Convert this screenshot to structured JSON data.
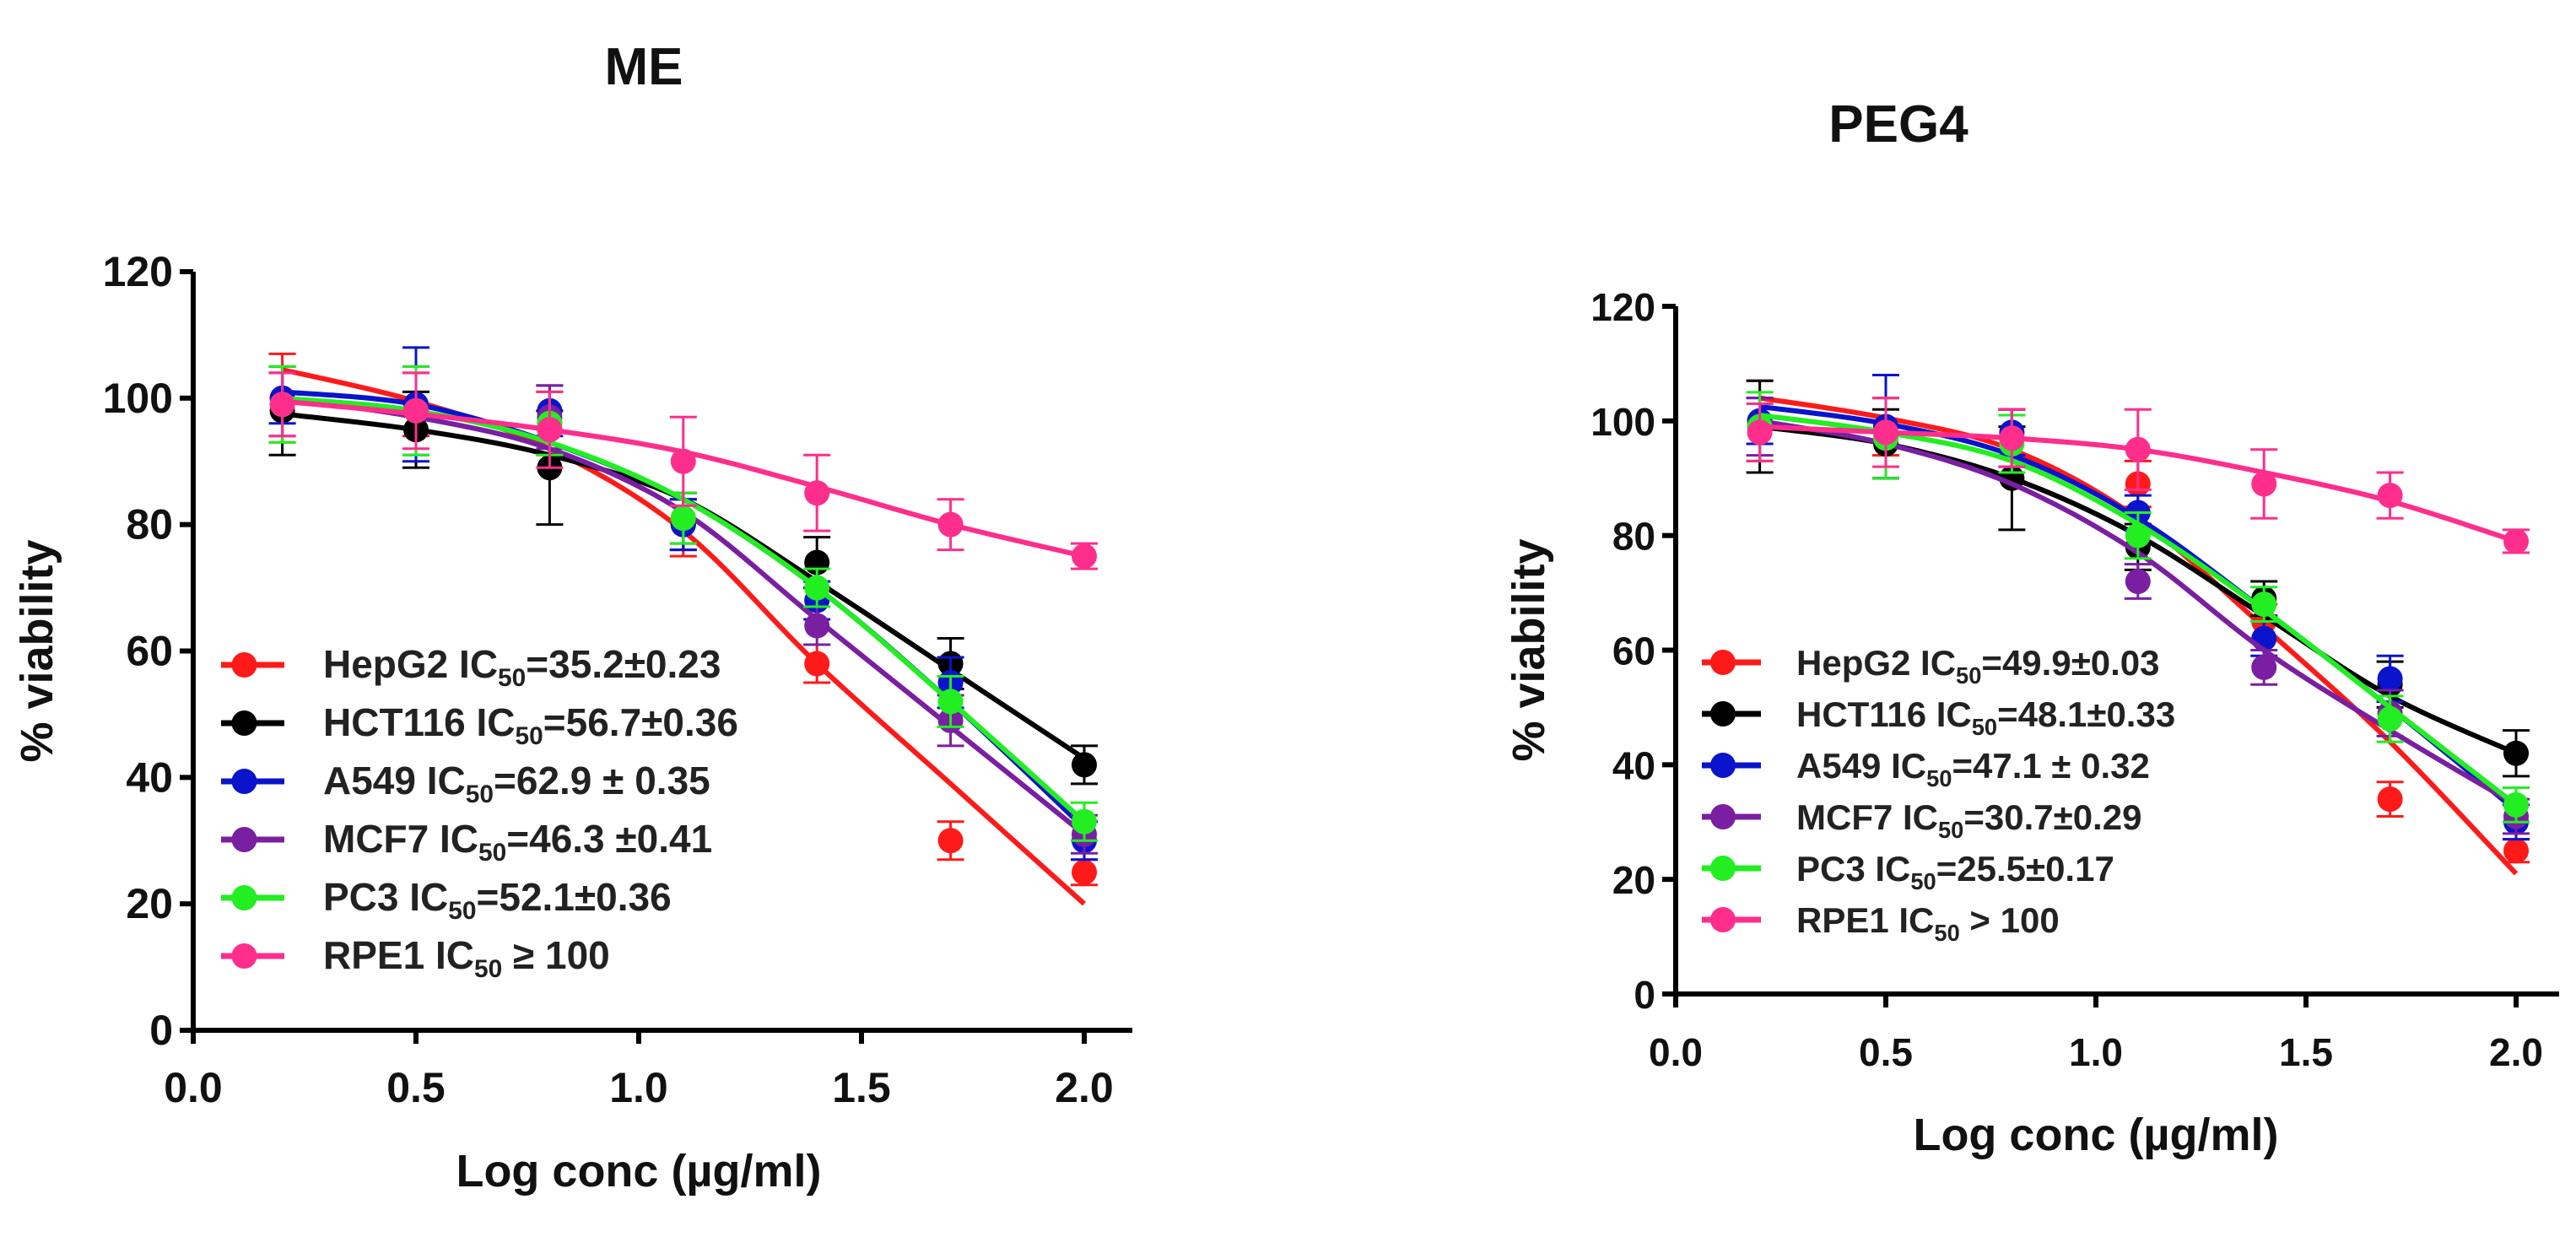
{
  "chart_data": [
    {
      "type": "line",
      "title": "ME",
      "xlabel": "Log conc (µg/ml)",
      "ylabel": "% viability",
      "xlim": [
        0,
        2.1
      ],
      "ylim": [
        0,
        120
      ],
      "xticks": [
        "0.0",
        "0.5",
        "1.0",
        "1.5",
        "2.0"
      ],
      "xtick_values": [
        0,
        0.5,
        1.0,
        1.5,
        2.0
      ],
      "yticks": [
        "0",
        "20",
        "40",
        "60",
        "80",
        "100",
        "120"
      ],
      "ytick_values": [
        0,
        20,
        40,
        60,
        80,
        100,
        120
      ],
      "grid": false,
      "legend_position": "bottom-left",
      "x": [
        0.2,
        0.5,
        0.8,
        1.1,
        1.4,
        1.7,
        2.0
      ],
      "series": [
        {
          "name": "HepG2",
          "label": "HepG2 IC",
          "sub": "50",
          "value": "=35.2±0.23",
          "color": "#ff1a1a",
          "values": [
            100,
            99,
            96,
            80,
            58,
            30,
            25
          ],
          "error": [
            7,
            5,
            5,
            5,
            3,
            3,
            2
          ],
          "fit": [
            104.5,
            99.5,
            92,
            79,
            58,
            39,
            20
          ]
        },
        {
          "name": "HCT116",
          "label": "HCT116 IC",
          "sub": "50",
          "value": "=56.7±0.36",
          "color": "#000000",
          "values": [
            98,
            95,
            89,
            80,
            74,
            58,
            42
          ],
          "error": [
            7,
            6,
            9,
            4,
            4,
            4,
            3
          ],
          "fit": [
            97.5,
            95,
            91,
            84,
            71,
            57,
            43
          ]
        },
        {
          "name": "A549",
          "label": "A549 IC",
          "sub": "50",
          "value": "=62.9 ± 0.35",
          "color": "#0a14cc",
          "values": [
            100,
            99,
            98,
            80,
            68,
            55,
            30
          ],
          "error": [
            4,
            9,
            4,
            4,
            3,
            4,
            3
          ],
          "fit": [
            101,
            99,
            93,
            84,
            70,
            52,
            32
          ]
        },
        {
          "name": "MCF7",
          "label": "MCF7 IC",
          "sub": "50",
          "value": "=46.3 ±0.41",
          "color": "#7a1fa2",
          "values": [
            99,
            98,
            97,
            81,
            64,
            49,
            31
          ],
          "error": [
            5,
            7,
            5,
            4,
            3,
            4,
            3
          ],
          "fit": [
            100,
            97,
            92,
            82,
            65,
            48,
            31
          ]
        },
        {
          "name": "PC3",
          "label": "PC3  IC",
          "sub": "50",
          "value": "=52.1±0.36",
          "color": "#22ee22",
          "values": [
            99,
            98,
            96,
            81,
            70,
            52,
            33
          ],
          "error": [
            6,
            7,
            5,
            4,
            3,
            4,
            3
          ],
          "fit": [
            100,
            98,
            93,
            84,
            70,
            52,
            33
          ]
        },
        {
          "name": "RPE1",
          "label": "RPE1 IC",
          "sub": "50",
          "value": " ≥ 100",
          "color": "#ff2e8c",
          "values": [
            99,
            98,
            95,
            90,
            85,
            80,
            75
          ],
          "error": [
            5,
            6,
            6,
            7,
            6,
            4,
            2
          ],
          "fit": [
            99.5,
            97.5,
            95,
            91.5,
            86,
            80,
            75
          ]
        }
      ]
    },
    {
      "type": "line",
      "title": "PEG4",
      "xlabel": "Log conc (µg/ml)",
      "ylabel": "% viability",
      "xlim": [
        0,
        2.1
      ],
      "ylim": [
        0,
        120
      ],
      "xticks": [
        "0.0",
        "0.5",
        "1.0",
        "1.5",
        "2.0"
      ],
      "xtick_values": [
        0,
        0.5,
        1.0,
        1.5,
        2.0
      ],
      "yticks": [
        "0",
        "20",
        "40",
        "60",
        "80",
        "100",
        "120"
      ],
      "ytick_values": [
        0,
        20,
        40,
        60,
        80,
        100,
        120
      ],
      "grid": false,
      "legend_position": "bottom-left",
      "x": [
        0.2,
        0.5,
        0.8,
        1.1,
        1.4,
        1.7,
        2.0
      ],
      "series": [
        {
          "name": "HepG2",
          "label": "HepG2 IC",
          "sub": "50",
          "value": "=49.9±0.03",
          "color": "#ff1a1a",
          "values": [
            100,
            99,
            97,
            89,
            65,
            34,
            25
          ],
          "error": [
            7,
            5,
            5,
            4,
            3,
            3,
            2
          ],
          "fit": [
            104,
            100.5,
            95,
            83,
            64,
            44,
            21
          ]
        },
        {
          "name": "HCT116",
          "label": "HCT116 IC",
          "sub": "50",
          "value": "=48.1±0.33",
          "color": "#000000",
          "values": [
            99,
            96,
            90,
            78,
            69,
            54,
            42
          ],
          "error": [
            8,
            6,
            9,
            4,
            3,
            4,
            4
          ],
          "fit": [
            99,
            96,
            90,
            80,
            66,
            52,
            42
          ]
        },
        {
          "name": "A549",
          "label": "A549 IC",
          "sub": "50",
          "value": "=47.1 ± 0.32",
          "color": "#0a14cc",
          "values": [
            100,
            99,
            98,
            84,
            62,
            55,
            30
          ],
          "error": [
            4,
            9,
            4,
            3,
            3,
            4,
            3
          ],
          "fit": [
            102.5,
            99.5,
            94,
            83,
            67,
            50,
            32
          ]
        },
        {
          "name": "MCF7",
          "label": "MCF7 IC",
          "sub": "50",
          "value": "=30.7±0.29",
          "color": "#7a1fa2",
          "values": [
            99,
            97,
            97,
            72,
            57,
            49,
            31
          ],
          "error": [
            5,
            7,
            5,
            3,
            3,
            4,
            3
          ],
          "fit": [
            100,
            96,
            89,
            77,
            60,
            46,
            33
          ]
        },
        {
          "name": "PC3",
          "label": "PC3  IC",
          "sub": "50",
          "value": "=25.5±0.17",
          "color": "#22ee22",
          "values": [
            99,
            97,
            96,
            80,
            68,
            48,
            33
          ],
          "error": [
            6,
            7,
            5,
            4,
            3,
            4,
            3
          ],
          "fit": [
            101,
            98,
            93,
            82,
            67,
            50,
            33
          ]
        },
        {
          "name": "RPE1",
          "label": "RPE1 IC",
          "sub": "50",
          "value": " > 100",
          "color": "#ff2e8c",
          "values": [
            98,
            98,
            97,
            95,
            89,
            87,
            79
          ],
          "error": [
            5,
            6,
            5,
            7,
            6,
            4,
            2
          ],
          "fit": [
            99,
            98,
            97,
            95,
            91,
            86,
            79
          ]
        }
      ]
    }
  ]
}
